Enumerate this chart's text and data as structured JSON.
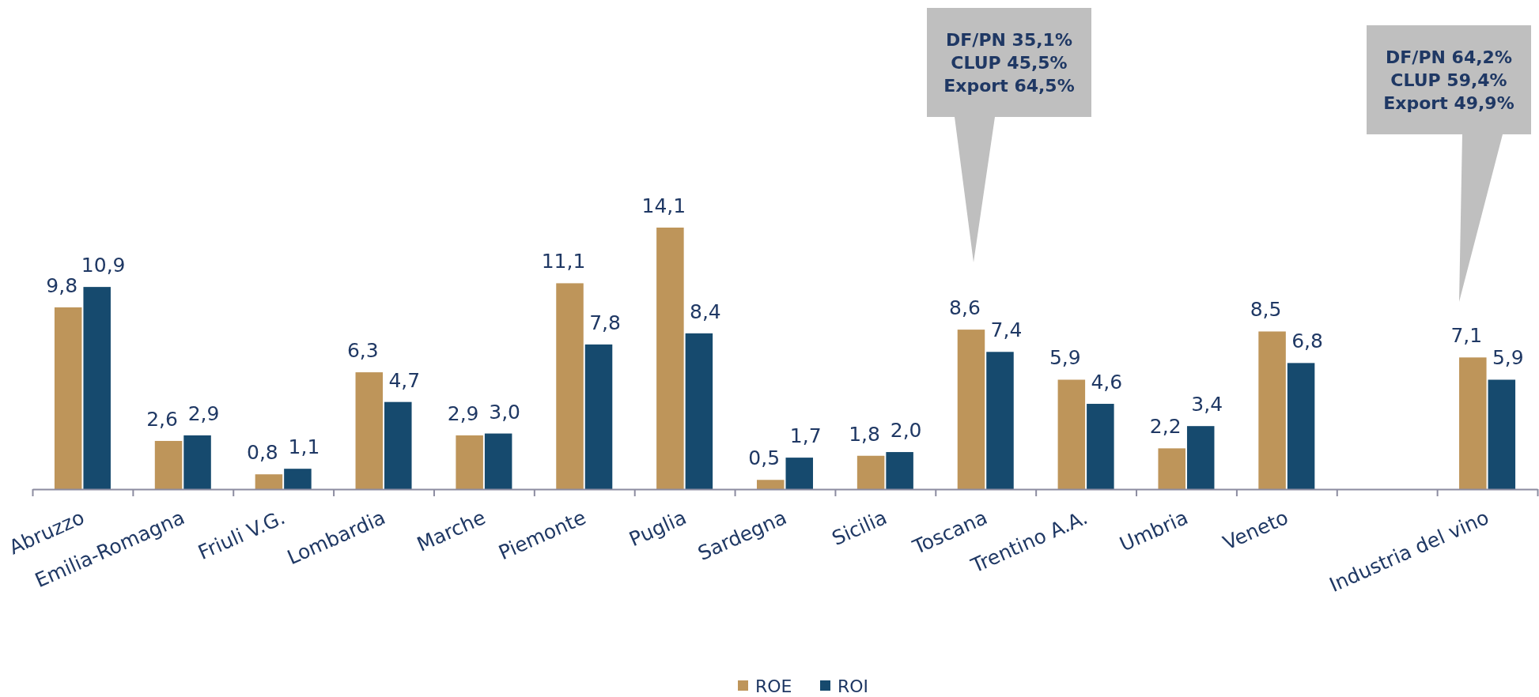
{
  "chart_data": {
    "type": "bar",
    "categories": [
      "Abruzzo",
      "Emilia-Romagna",
      "Friuli V.G.",
      "Lombardia",
      "Marche",
      "Piemonte",
      "Puglia",
      "Sardegna",
      "Sicilia",
      "Toscana",
      "Trentino A.A.",
      "Umbria",
      "Veneto",
      null,
      "Industria del vino"
    ],
    "series": [
      {
        "name": "ROE",
        "color": "#be955a",
        "values": [
          9.8,
          2.6,
          0.8,
          6.3,
          2.9,
          11.1,
          14.1,
          0.5,
          1.8,
          8.6,
          5.9,
          2.2,
          8.5,
          null,
          7.1
        ],
        "value_labels": [
          "9,8",
          "2,6",
          "0,8",
          "6,3",
          "2,9",
          "11,1",
          "14,1",
          "0,5",
          "1,8",
          "8,6",
          "5,9",
          "2,2",
          "8,5",
          null,
          "7,1"
        ]
      },
      {
        "name": "ROI",
        "color": "#164a6e",
        "values": [
          10.9,
          2.9,
          1.1,
          4.7,
          3.0,
          7.8,
          8.4,
          1.7,
          2.0,
          7.4,
          4.6,
          3.4,
          6.8,
          null,
          5.9
        ],
        "value_labels": [
          "10,9",
          "2,9",
          "1,1",
          "4,7",
          "3,0",
          "7,8",
          "8,4",
          "1,7",
          "2,0",
          "7,4",
          "4,6",
          "3,4",
          "6,8",
          null,
          "5,9"
        ]
      }
    ],
    "legend": "bottom",
    "annotations": [
      "DF/PN 35,1%\nCLUP 45,5%\nExport 64,5%",
      "DF/PN 64,2%\nCLUP 59,4%\nExport 49,9%"
    ]
  }
}
